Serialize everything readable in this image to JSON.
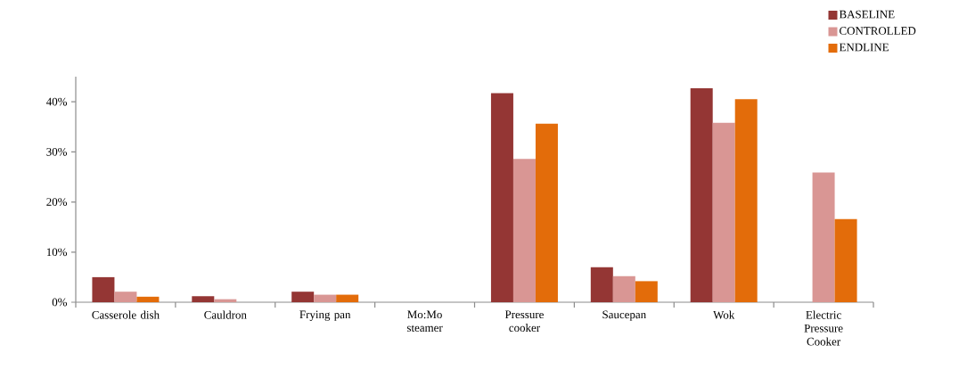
{
  "chart_data": {
    "type": "bar",
    "categories": [
      "Casserole dish",
      "Cauldron",
      "Frying pan",
      "Mo:Mo steamer",
      "Pressure cooker",
      "Saucepan",
      "Wok",
      "Electric Pressure Cooker"
    ],
    "series": [
      {
        "name": "BASELINE",
        "color": "#943634",
        "values": [
          5.0,
          1.2,
          2.1,
          0,
          41.7,
          7.0,
          42.7,
          0
        ]
      },
      {
        "name": "CONTROLLED",
        "color": "#d99694",
        "values": [
          2.1,
          0.6,
          1.5,
          0,
          28.6,
          5.2,
          35.8,
          25.9
        ]
      },
      {
        "name": "ENDLINE",
        "color": "#e36c0a",
        "values": [
          1.1,
          0,
          1.5,
          0,
          35.6,
          4.2,
          40.5,
          16.6
        ]
      }
    ],
    "ylim": [
      0,
      45
    ],
    "yticks": [
      {
        "value": 0,
        "label": "0%"
      },
      {
        "value": 10,
        "label": "10%"
      },
      {
        "value": 20,
        "label": "20%"
      },
      {
        "value": 30,
        "label": "30%"
      },
      {
        "value": 40,
        "label": "40%"
      }
    ],
    "grid": false,
    "legend": "top right"
  }
}
